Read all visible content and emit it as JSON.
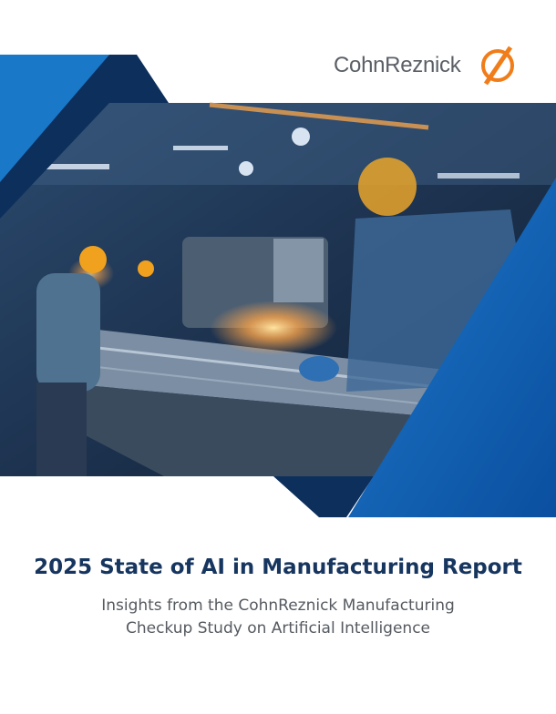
{
  "logo": {
    "text": "CohnReznick"
  },
  "title": "2025 State of AI in Manufacturing Report",
  "subtitle": "Insights from the CohnReznick Manufacturing Checkup Study on Artificial Intelligence"
}
